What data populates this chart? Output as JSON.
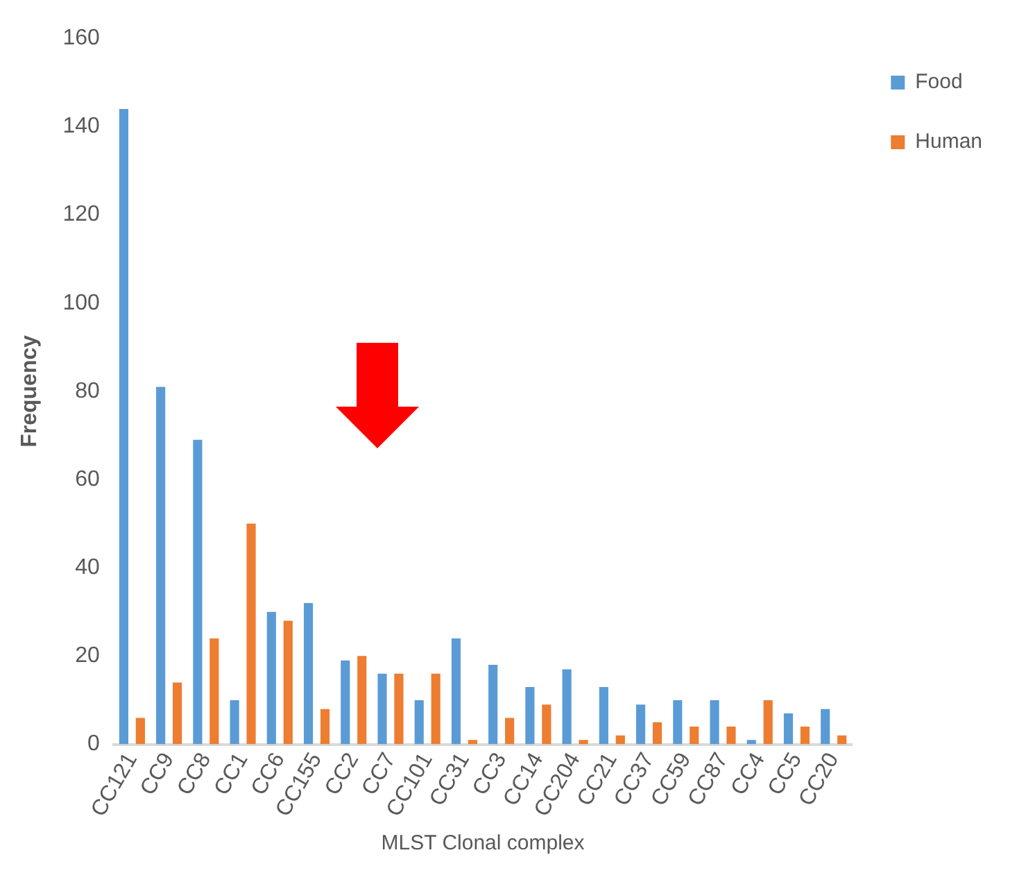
{
  "chart_data": {
    "type": "bar",
    "xlabel": "MLST Clonal complex",
    "ylabel": "Frequency",
    "categories": [
      "CC121",
      "CC9",
      "CC8",
      "CC1",
      "CC6",
      "CC155",
      "CC2",
      "CC7",
      "CC101",
      "CC31",
      "CC3",
      "CC14",
      "CC204",
      "CC21",
      "CC37",
      "CC59",
      "CC87",
      "CC4",
      "CC5",
      "CC20"
    ],
    "series": [
      {
        "name": "Food",
        "color": "#5b9bd5",
        "values": [
          144,
          81,
          69,
          10,
          30,
          32,
          19,
          16,
          10,
          24,
          18,
          13,
          17,
          13,
          9,
          10,
          10,
          1,
          7,
          8
        ]
      },
      {
        "name": "Human",
        "color": "#ed7d31",
        "values": [
          6,
          14,
          24,
          50,
          28,
          8,
          20,
          16,
          16,
          1,
          6,
          9,
          1,
          2,
          5,
          4,
          4,
          10,
          4,
          2
        ]
      }
    ],
    "ylim": [
      0,
      160
    ],
    "yticks": [
      0,
      20,
      40,
      60,
      80,
      100,
      120,
      140,
      160
    ],
    "grid": false,
    "legend": "top right"
  }
}
